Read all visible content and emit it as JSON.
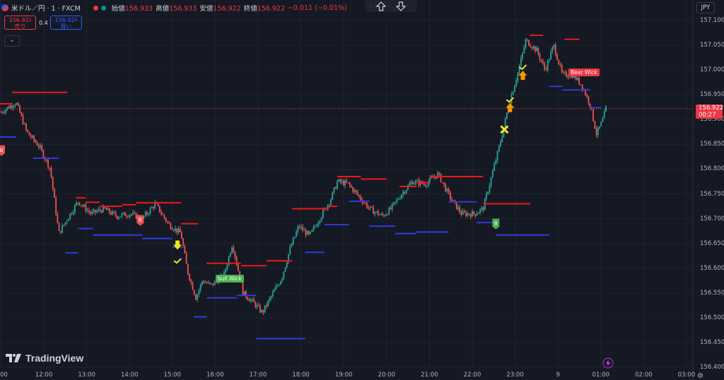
{
  "header": {
    "symbol": "米ドル／円 · 1 · FXCM",
    "open_label": "始値",
    "open_value": "156.933",
    "high_label": "高値",
    "high_value": "156.933",
    "low_label": "安値",
    "low_value": "156.922",
    "close_label": "終値",
    "close_value": "156.922",
    "change": "−0.011 (−0.01%)"
  },
  "trade": {
    "sell_price": "156.92",
    "sell_price_small": "2",
    "sell_label": "売り",
    "spread": "0.4",
    "buy_price": "156.92",
    "buy_price_small": "6",
    "buy_label": "買い"
  },
  "collapse_icon": "chevron-down-icon",
  "toolbar": {
    "up_icon": "arrow-up-outline-icon",
    "down_icon": "arrow-down-outline-icon"
  },
  "currency": "JPY",
  "price_tag": {
    "price": "156.922",
    "countdown": "00:27"
  },
  "logo_text": "TradingView",
  "annotations": {
    "bear_wick": "Bear Wick",
    "bull_wick": "bull Wick",
    "marker_letter": "B"
  },
  "colors": {
    "background": "#151924",
    "up": "#26a69a",
    "down": "#ef5350",
    "resistance": "#f21616",
    "support": "#2f3bd8",
    "marker_yellow": "#f5e614",
    "marker_orange": "#ff9800"
  },
  "chart_data": {
    "type": "candlestick",
    "instrument": "USDJPY",
    "ylim": [
      156.45,
      157.11
    ],
    "y_ticks": [
      "157.100",
      "157.050",
      "157.000",
      "156.950",
      "156.900",
      "156.850",
      "156.800",
      "156.750",
      "156.700",
      "156.650",
      "156.600",
      "156.550",
      "156.500",
      "156.450",
      "156.400"
    ],
    "x_ticks": [
      "12:00",
      "13:00",
      "14:00",
      "15:00",
      "16:00",
      "17:00",
      "18:00",
      "19:00",
      "20:00",
      "21:00",
      "22:00",
      "23:00",
      "9",
      "01:00",
      "02:00",
      "03:00"
    ],
    "x_ticks_partial_left": ":00",
    "path": [
      [
        11.0,
        156.915
      ],
      [
        11.35,
        156.935
      ],
      [
        11.6,
        156.875
      ],
      [
        11.9,
        156.845
      ],
      [
        12.15,
        156.8
      ],
      [
        12.35,
        156.67
      ],
      [
        12.55,
        156.7
      ],
      [
        12.8,
        156.735
      ],
      [
        13.1,
        156.71
      ],
      [
        13.4,
        156.72
      ],
      [
        13.7,
        156.705
      ],
      [
        14.0,
        156.71
      ],
      [
        14.3,
        156.7
      ],
      [
        14.6,
        156.73
      ],
      [
        14.9,
        156.69
      ],
      [
        15.2,
        156.67
      ],
      [
        15.35,
        156.595
      ],
      [
        15.55,
        156.54
      ],
      [
        15.7,
        156.575
      ],
      [
        15.9,
        156.565
      ],
      [
        16.2,
        156.585
      ],
      [
        16.4,
        156.65
      ],
      [
        16.65,
        156.55
      ],
      [
        16.9,
        156.53
      ],
      [
        17.1,
        156.51
      ],
      [
        17.35,
        156.55
      ],
      [
        17.55,
        156.58
      ],
      [
        17.75,
        156.64
      ],
      [
        17.95,
        156.685
      ],
      [
        18.2,
        156.665
      ],
      [
        18.4,
        156.695
      ],
      [
        18.7,
        156.74
      ],
      [
        18.85,
        156.775
      ],
      [
        19.1,
        156.77
      ],
      [
        19.4,
        156.74
      ],
      [
        19.6,
        156.72
      ],
      [
        19.9,
        156.705
      ],
      [
        20.1,
        156.72
      ],
      [
        20.35,
        156.75
      ],
      [
        20.6,
        156.775
      ],
      [
        20.9,
        156.77
      ],
      [
        21.2,
        156.79
      ],
      [
        21.5,
        156.74
      ],
      [
        21.75,
        156.71
      ],
      [
        22.05,
        156.71
      ],
      [
        22.25,
        156.72
      ],
      [
        22.45,
        156.785
      ],
      [
        22.7,
        156.87
      ],
      [
        22.85,
        156.93
      ],
      [
        23.05,
        156.99
      ],
      [
        23.25,
        157.06
      ],
      [
        23.5,
        157.04
      ],
      [
        23.7,
        157.0
      ],
      [
        23.9,
        157.05
      ],
      [
        24.1,
        156.99
      ],
      [
        24.35,
        156.99
      ],
      [
        24.55,
        156.97
      ],
      [
        24.75,
        156.93
      ],
      [
        24.9,
        156.87
      ],
      [
        25.05,
        156.9
      ],
      [
        25.15,
        156.935
      ]
    ],
    "resistance_levels": [
      {
        "x": [
          10.85,
          11.25
        ],
        "y": 156.932
      },
      {
        "x": [
          11.25,
          12.55
        ],
        "y": 156.955
      },
      {
        "x": [
          12.75,
          12.98
        ],
        "y": 156.742
      },
      {
        "x": [
          12.98,
          13.3
        ],
        "y": 156.733
      },
      {
        "x": [
          13.3,
          13.83
        ],
        "y": 156.725
      },
      {
        "x": [
          13.83,
          14.15
        ],
        "y": 156.728
      },
      {
        "x": [
          14.15,
          15.2
        ],
        "y": 156.732
      },
      {
        "x": [
          15.2,
          15.6
        ],
        "y": 156.69
      },
      {
        "x": [
          15.8,
          16.6
        ],
        "y": 156.61
      },
      {
        "x": [
          16.6,
          17.2
        ],
        "y": 156.605
      },
      {
        "x": [
          17.2,
          17.8
        ],
        "y": 156.615
      },
      {
        "x": [
          17.8,
          18.65
        ],
        "y": 156.72
      },
      {
        "x": [
          18.65,
          18.85
        ],
        "y": 156.725
      },
      {
        "x": [
          18.85,
          19.4
        ],
        "y": 156.785
      },
      {
        "x": [
          19.4,
          20.0
        ],
        "y": 156.78
      },
      {
        "x": [
          20.3,
          20.7
        ],
        "y": 156.765
      },
      {
        "x": [
          20.7,
          21.0
        ],
        "y": 156.773
      },
      {
        "x": [
          21.0,
          21.6
        ],
        "y": 156.785
      },
      {
        "x": [
          21.6,
          22.25
        ],
        "y": 156.785
      },
      {
        "x": [
          22.25,
          23.35
        ],
        "y": 156.73
      },
      {
        "x": [
          23.35,
          23.65
        ],
        "y": 157.07
      },
      {
        "x": [
          24.15,
          24.5
        ],
        "y": 157.062
      }
    ],
    "support_levels": [
      {
        "x": [
          10.85,
          11.35
        ],
        "y": 156.865
      },
      {
        "x": [
          11.75,
          12.35
        ],
        "y": 156.822
      },
      {
        "x": [
          12.5,
          12.8
        ],
        "y": 156.631
      },
      {
        "x": [
          12.8,
          13.15
        ],
        "y": 156.68
      },
      {
        "x": [
          13.15,
          14.3
        ],
        "y": 156.667
      },
      {
        "x": [
          14.3,
          15.0
        ],
        "y": 156.66
      },
      {
        "x": [
          15.0,
          15.25
        ],
        "y": 156.642
      },
      {
        "x": [
          15.5,
          15.8
        ],
        "y": 156.502
      },
      {
        "x": [
          15.8,
          16.5
        ],
        "y": 156.54
      },
      {
        "x": [
          16.5,
          16.95
        ],
        "y": 156.545
      },
      {
        "x": [
          16.95,
          18.1
        ],
        "y": 156.458
      },
      {
        "x": [
          18.1,
          18.55
        ],
        "y": 156.632
      },
      {
        "x": [
          18.55,
          19.12
        ],
        "y": 156.688
      },
      {
        "x": [
          19.12,
          19.6
        ],
        "y": 156.735
      },
      {
        "x": [
          19.6,
          20.2
        ],
        "y": 156.685
      },
      {
        "x": [
          20.2,
          20.7
        ],
        "y": 156.67
      },
      {
        "x": [
          20.7,
          21.45
        ],
        "y": 156.673
      },
      {
        "x": [
          21.45,
          22.1
        ],
        "y": 156.734
      },
      {
        "x": [
          22.1,
          22.55
        ],
        "y": 156.692
      },
      {
        "x": [
          22.55,
          23.8
        ],
        "y": 156.667
      },
      {
        "x": [
          23.8,
          24.1
        ],
        "y": 156.967
      },
      {
        "x": [
          24.1,
          24.75
        ],
        "y": 156.96
      },
      {
        "x": [
          24.75,
          25.0
        ],
        "y": 156.924
      }
    ],
    "markers": [
      {
        "kind": "letter",
        "t": 11.01,
        "p": 156.838,
        "color": "#ef5350"
      },
      {
        "kind": "letter",
        "t": 14.25,
        "p": 156.697,
        "color": "#ef5350"
      },
      {
        "kind": "letter",
        "t": 22.55,
        "p": 156.69,
        "color": "#4caf50"
      },
      {
        "kind": "down-arrow",
        "t": 15.12,
        "p": 156.646,
        "color": "#f5e614"
      },
      {
        "kind": "check",
        "t": 15.12,
        "p": 156.615,
        "color": "#f5e614"
      },
      {
        "kind": "cross",
        "t": 22.75,
        "p": 156.88,
        "color": "#f5e614"
      },
      {
        "kind": "up-arrow",
        "t": 22.88,
        "p": 156.925,
        "color": "#ff9800"
      },
      {
        "kind": "check",
        "t": 22.88,
        "p": 156.94,
        "color": "#f5e614"
      },
      {
        "kind": "up-arrow",
        "t": 23.18,
        "p": 156.99,
        "color": "#ff9800"
      },
      {
        "kind": "check",
        "t": 23.18,
        "p": 157.006,
        "color": "#f5e614"
      }
    ]
  }
}
